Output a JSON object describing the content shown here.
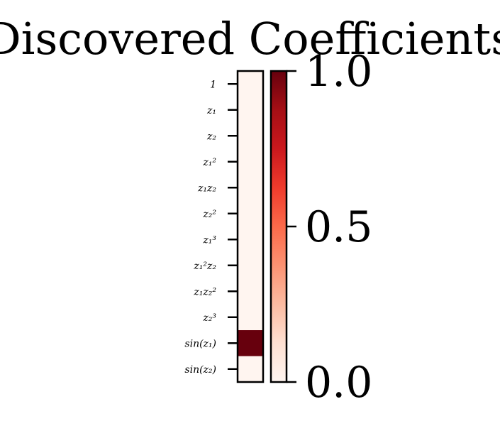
{
  "chart_data": {
    "type": "heatmap",
    "title": "Discovered Coefficients",
    "xlabel": "",
    "ylabel": "",
    "rows": [
      {
        "label": "1",
        "value": 0.0
      },
      {
        "label": "z₁",
        "value": 0.0
      },
      {
        "label": "z₂",
        "value": 0.0
      },
      {
        "label": "z₁²",
        "value": 0.0
      },
      {
        "label": "z₁z₂",
        "value": 0.0
      },
      {
        "label": "z₂²",
        "value": 0.0
      },
      {
        "label": "z₁³",
        "value": 0.0
      },
      {
        "label": "z₁²z₂",
        "value": 0.0
      },
      {
        "label": "z₁z₂²",
        "value": 0.0
      },
      {
        "label": "z₂³",
        "value": 0.0
      },
      {
        "label": "sin(z₁)",
        "value": 1.0
      },
      {
        "label": "sin(z₂)",
        "value": 0.0
      }
    ],
    "colorbar": {
      "colormap": "Reds",
      "range": [
        0.0,
        1.0
      ],
      "ticks": [
        "0.0",
        "0.5",
        "1.0"
      ],
      "low_color": "#fff5f0",
      "mid_color": "#fb6a4a",
      "high_color": "#67000d"
    },
    "grid": false
  }
}
